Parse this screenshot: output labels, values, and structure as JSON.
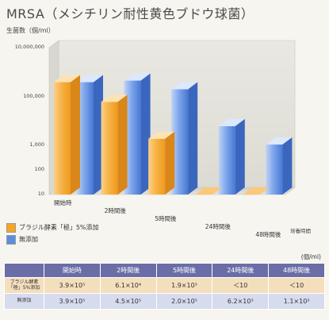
{
  "title": "MRSA（メシチリン耐性黄色ブドウ球菌）",
  "chart_data": {
    "type": "bar",
    "ylabel": "生菌数（個/ml）",
    "xlabel": "培養時間",
    "yscale": "log",
    "ylim": [
      10,
      10000000
    ],
    "yticks": [
      "10,000,000",
      "100,000",
      "1,000",
      "100",
      "10"
    ],
    "categories": [
      "開始時",
      "2時間後",
      "5時間後",
      "24時間後",
      "48時間後"
    ],
    "series": [
      {
        "name": "ブラジル酵素「極」5%添加",
        "color": "#f5a623",
        "values": [
          390000,
          61000,
          1900,
          10,
          10
        ]
      },
      {
        "name": "無添加",
        "color": "#5b8de0",
        "values": [
          390000,
          450000,
          200000,
          6200,
          1100
        ]
      }
    ],
    "legend_position": "bottom-left",
    "grid": false
  },
  "table": {
    "unit": "(個/ml)",
    "headers": [
      "",
      "開始時",
      "2時間後",
      "5時間後",
      "24時間後",
      "48時間後"
    ],
    "rows": [
      {
        "label": "ブラジル酵素「極」5%添加",
        "cells": [
          "3.9×10⁵",
          "6.1×10⁴",
          "1.9×10³",
          "＜10",
          "＜10"
        ]
      },
      {
        "label": "無添加",
        "cells": [
          "3.9×10⁵",
          "4.5×10⁵",
          "2.0×10⁵",
          "6.2×10³",
          "1.1×10³"
        ]
      }
    ]
  }
}
